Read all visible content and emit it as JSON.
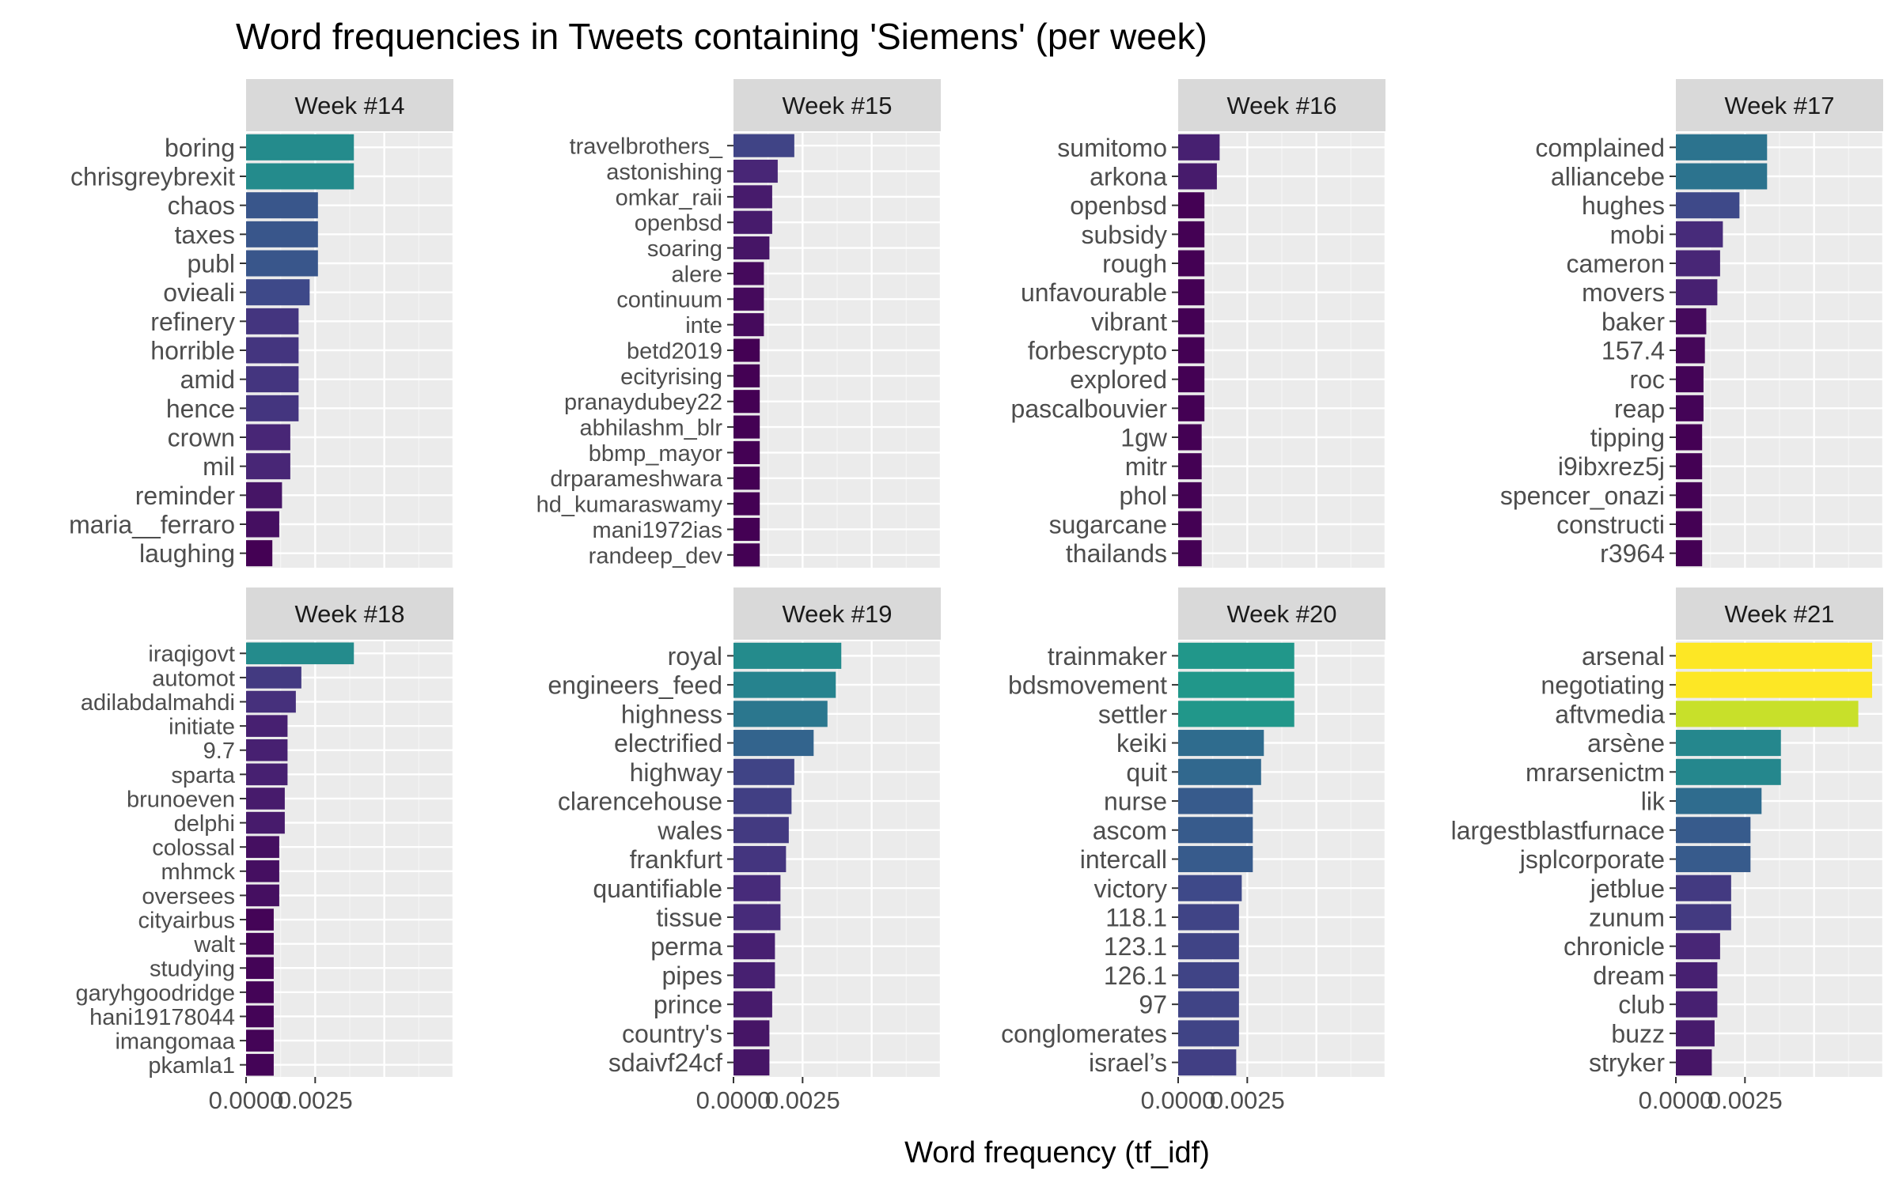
{
  "chart_data": {
    "type": "bar",
    "orientation": "horizontal",
    "title": "Word frequencies in Tweets containing 'Siemens' (per week)",
    "xlabel": "Word frequency (tf_idf)",
    "ylabel": "",
    "xlim": [
      0,
      0.0075
    ],
    "x_ticks": [
      "0.0000",
      "0.0025"
    ],
    "x_tick_values": [
      0,
      0.0025
    ],
    "grid": true,
    "legend": "none",
    "color_scale": "viridis",
    "color_range": [
      0.00095,
      0.0071
    ],
    "colors": {
      "panel_bg": "#EBEBEB",
      "strip_bg": "#D9D9D9",
      "grid_major": "#FFFFFF",
      "axis_text": "#4D4D4D",
      "title_text": "#000000"
    },
    "facets": [
      {
        "label": "Week #14",
        "terms": [
          "boring",
          "chrisgreybrexit",
          "chaos",
          "taxes",
          "publ",
          "ovieali",
          "refinery",
          "horrible",
          "amid",
          "hence",
          "crown",
          "mil",
          "reminder",
          "maria__ferraro",
          "laughing"
        ],
        "values": [
          0.0039,
          0.0039,
          0.0026,
          0.0026,
          0.0026,
          0.0023,
          0.0019,
          0.0019,
          0.0019,
          0.0019,
          0.0016,
          0.0016,
          0.0013,
          0.0012,
          0.00095
        ]
      },
      {
        "label": "Week #15",
        "terms": [
          "travelbrothers_",
          "astonishing",
          "omkar_raii",
          "openbsd",
          "soaring",
          "alere",
          "continuum",
          "inte",
          "betd2019",
          "ecityrising",
          "pranaydubey22",
          "abhilashm_blr",
          "bbmp_mayor",
          "drparameshwara",
          "hd_kumaraswamy",
          "mani1972ias",
          "randeep_dev"
        ],
        "values": [
          0.0022,
          0.0016,
          0.0014,
          0.0014,
          0.0013,
          0.0011,
          0.0011,
          0.0011,
          0.00095,
          0.00095,
          0.00095,
          0.00095,
          0.00095,
          0.00095,
          0.00095,
          0.00095,
          0.00095
        ]
      },
      {
        "label": "Week #16",
        "terms": [
          "sumitomo",
          "arkona",
          "openbsd",
          "subsidy",
          "rough",
          "unfavourable",
          "vibrant",
          "forbescrypto",
          "explored",
          "pascalbouvier",
          "1gw",
          "mitr",
          "phol",
          "sugarcane",
          "thailands"
        ],
        "values": [
          0.0015,
          0.0014,
          0.00095,
          0.00095,
          0.00095,
          0.00095,
          0.00095,
          0.00095,
          0.00095,
          0.00095,
          0.00085,
          0.00085,
          0.00085,
          0.00085,
          0.00085
        ]
      },
      {
        "label": "Week #17",
        "terms": [
          "complained",
          "alliancebe",
          "hughes",
          "mobi",
          "cameron",
          "movers",
          "baker",
          "157.4",
          "roc",
          "reap",
          "tipping",
          "i9ibxrez5j",
          "spencer_onazi",
          "constructi",
          "r3964"
        ],
        "values": [
          0.0033,
          0.0033,
          0.0023,
          0.0017,
          0.0016,
          0.0015,
          0.0011,
          0.00105,
          0.001,
          0.001,
          0.00095,
          0.00095,
          0.00095,
          0.00095,
          0.00095
        ]
      },
      {
        "label": "Week #18",
        "terms": [
          "iraqigovt",
          "automot",
          "adilabdalmahdi",
          "initiate",
          "9.7",
          "sparta",
          "brunoeven",
          "delphi",
          "colossal",
          "mhmck",
          "oversees",
          "cityairbus",
          "walt",
          "studying",
          "garyhgoodridge",
          "hani19178044",
          "imangomaa",
          "pkamla1"
        ],
        "values": [
          0.0039,
          0.002,
          0.0018,
          0.0015,
          0.0015,
          0.0015,
          0.0014,
          0.0014,
          0.0012,
          0.0012,
          0.0012,
          0.001,
          0.001,
          0.001,
          0.001,
          0.001,
          0.001,
          0.001
        ]
      },
      {
        "label": "Week #19",
        "terms": [
          "royal",
          "engineers_feed",
          "highness",
          "electrified",
          "highway",
          "clarencehouse",
          "wales",
          "frankfurt",
          "quantifiable",
          "tissue",
          "perma",
          "pipes",
          "prince",
          "country's",
          "sdaivf24cf"
        ],
        "values": [
          0.0039,
          0.0037,
          0.0034,
          0.0029,
          0.0022,
          0.0021,
          0.002,
          0.0019,
          0.0017,
          0.0017,
          0.0015,
          0.0015,
          0.0014,
          0.0013,
          0.0013
        ]
      },
      {
        "label": "Week #20",
        "terms": [
          "trainmaker",
          "bdsmovement",
          "settler",
          "keiki",
          "quit",
          "nurse",
          "ascom",
          "intercall",
          "victory",
          "118.1",
          "123.1",
          "126.1",
          "97",
          "conglomerates",
          "israel’s"
        ],
        "values": [
          0.0042,
          0.0042,
          0.0042,
          0.0031,
          0.003,
          0.0027,
          0.0027,
          0.0027,
          0.0023,
          0.0022,
          0.0022,
          0.0022,
          0.0022,
          0.0022,
          0.0021
        ]
      },
      {
        "label": "Week #21",
        "terms": [
          "arsenal",
          "negotiating",
          "aftvmedia",
          "arsène",
          "mrarsenictm",
          "lik",
          "largestblastfurnace",
          "jsplcorporate",
          "jetblue",
          "zunum",
          "chronicle",
          "dream",
          "club",
          "buzz",
          "stryker"
        ],
        "values": [
          0.0071,
          0.0071,
          0.0066,
          0.0038,
          0.0038,
          0.0031,
          0.0027,
          0.0027,
          0.002,
          0.002,
          0.0016,
          0.0015,
          0.0015,
          0.0014,
          0.0013
        ]
      }
    ]
  }
}
